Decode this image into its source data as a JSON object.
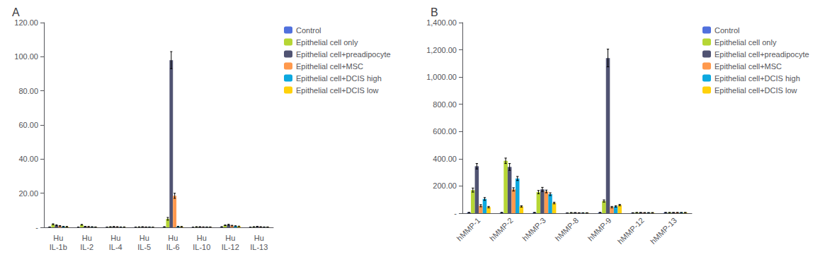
{
  "chart_data": [
    {
      "type": "bar",
      "title": "A",
      "categories": [
        "Hu\nIL-1b",
        "Hu\nIL-2",
        "Hu\nIL-4",
        "Hu\nIL-5",
        "Hu\nIL-6",
        "Hu\nIL-10",
        "Hu\nIL-12",
        "Hu\nIL-13"
      ],
      "series": [
        {
          "name": "Control",
          "values": [
            0.2,
            0.1,
            0.1,
            0.1,
            0.3,
            0.1,
            0.3,
            0.1
          ],
          "errors": [
            0.05,
            0.05,
            0.05,
            0.05,
            0.1,
            0.05,
            0.1,
            0.05
          ]
        },
        {
          "name": "Epithelial cell only",
          "values": [
            1.8,
            1.5,
            0.3,
            0.2,
            5.0,
            0.3,
            1.2,
            0.3
          ],
          "errors": [
            0.3,
            0.2,
            0.1,
            0.1,
            0.8,
            0.1,
            0.2,
            0.1
          ]
        },
        {
          "name": "Epithelial cell+preadipocyte",
          "values": [
            1.2,
            0.5,
            0.4,
            0.3,
            98.0,
            0.3,
            1.5,
            0.5
          ],
          "errors": [
            0.3,
            0.1,
            0.1,
            0.1,
            5.0,
            0.1,
            0.3,
            0.1
          ]
        },
        {
          "name": "Epithelial cell+MSC",
          "values": [
            0.8,
            0.4,
            0.3,
            0.2,
            18.5,
            0.2,
            1.0,
            0.3
          ],
          "errors": [
            0.2,
            0.1,
            0.1,
            0.05,
            1.5,
            0.1,
            0.2,
            0.1
          ]
        },
        {
          "name": "Epithelial cell+DCIS high",
          "values": [
            0.5,
            0.3,
            0.2,
            0.2,
            0.5,
            0.2,
            0.8,
            0.2
          ],
          "errors": [
            0.1,
            0.1,
            0.05,
            0.05,
            0.1,
            0.05,
            0.1,
            0.05
          ]
        },
        {
          "name": "Epithelial cell+DCIS low",
          "values": [
            0.4,
            0.2,
            0.2,
            0.1,
            0.4,
            0.2,
            0.6,
            0.2
          ],
          "errors": [
            0.1,
            0.05,
            0.05,
            0.05,
            0.1,
            0.05,
            0.1,
            0.05
          ]
        }
      ],
      "ylim": [
        0,
        120
      ],
      "yticks": [
        {
          "value": 0,
          "label": "-"
        },
        {
          "value": 20,
          "label": "20.00"
        },
        {
          "value": 40,
          "label": "40.00"
        },
        {
          "value": 60,
          "label": "60.00"
        },
        {
          "value": 80,
          "label": "80.00"
        },
        {
          "value": 100,
          "label": "100.00"
        },
        {
          "value": 120,
          "label": "120.00"
        }
      ],
      "grid": false,
      "legend": "upper right"
    },
    {
      "type": "bar",
      "title": "B",
      "categories": [
        "hMMP-1",
        "hMMP-2",
        "hMMP-3",
        "hMMP-8",
        "hMMP-9",
        "hMMP-12",
        "hMMP-13"
      ],
      "series": [
        {
          "name": "Control",
          "values": [
            5,
            5,
            5,
            2,
            5,
            3,
            5
          ],
          "errors": [
            1,
            1,
            1,
            0.5,
            1,
            0.5,
            1
          ]
        },
        {
          "name": "Epithelial cell only",
          "values": [
            170,
            385,
            155,
            4,
            90,
            5,
            5
          ],
          "errors": [
            15,
            20,
            12,
            0.5,
            8,
            0.5,
            0.5
          ]
        },
        {
          "name": "Epithelial cell+preadipocyte",
          "values": [
            345,
            340,
            175,
            4,
            1140,
            5,
            5
          ],
          "errors": [
            20,
            25,
            15,
            0.5,
            65,
            0.5,
            0.5
          ]
        },
        {
          "name": "Epithelial cell+MSC",
          "values": [
            55,
            175,
            160,
            3,
            45,
            4,
            5
          ],
          "errors": [
            8,
            12,
            10,
            0.5,
            5,
            0.5,
            0.5
          ]
        },
        {
          "name": "Epithelial cell+DCIS high",
          "values": [
            105,
            255,
            140,
            3,
            50,
            4,
            5
          ],
          "errors": [
            10,
            15,
            10,
            0.5,
            5,
            0.5,
            0.5
          ]
        },
        {
          "name": "Epithelial cell+DCIS low",
          "values": [
            45,
            50,
            75,
            3,
            60,
            4,
            5
          ],
          "errors": [
            5,
            5,
            6,
            0.5,
            5,
            0.5,
            0.5
          ]
        }
      ],
      "ylim": [
        0,
        1400
      ],
      "yticks": [
        {
          "value": 0,
          "label": "-"
        },
        {
          "value": 200,
          "label": "200.00"
        },
        {
          "value": 400,
          "label": "400.00"
        },
        {
          "value": 600,
          "label": "600.00"
        },
        {
          "value": 800,
          "label": "800.00"
        },
        {
          "value": 1000,
          "label": "1,000.00"
        },
        {
          "value": 1200,
          "label": "1,200.00"
        },
        {
          "value": 1400,
          "label": "1,400.00"
        }
      ],
      "grid": false,
      "legend": "upper right"
    }
  ]
}
